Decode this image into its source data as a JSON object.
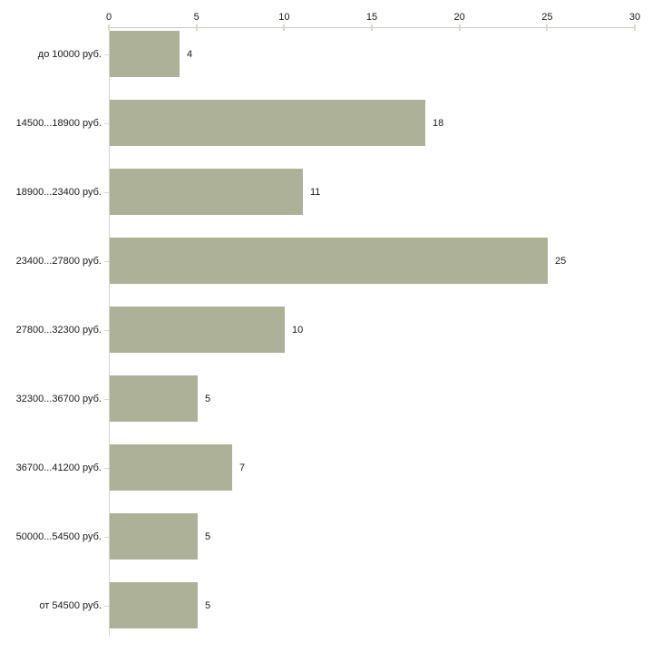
{
  "chart_data": {
    "type": "bar",
    "orientation": "horizontal",
    "title": "",
    "xlabel": "",
    "ylabel": "",
    "categories": [
      "до 10000 руб.",
      "14500...18900 руб.",
      "18900...23400 руб.",
      "23400...27800 руб.",
      "27800...32300 руб.",
      "32300...36700 руб.",
      "36700...41200 руб.",
      "50000...54500 руб.",
      "от 54500 руб."
    ],
    "values": [
      4,
      18,
      11,
      25,
      10,
      5,
      7,
      5,
      5
    ],
    "xlim": [
      0,
      30
    ],
    "x_ticks": [
      0,
      5,
      10,
      15,
      20,
      25,
      30
    ],
    "x_axis_position": "top",
    "grid": false,
    "legend": false,
    "data_labels": true,
    "bar_color": "#acb197",
    "axis_line_color": "#c9c9c9",
    "tick_mark_color": "#dadcc2",
    "text_color": "#1a1a1a",
    "background_color": "#ffffff"
  }
}
